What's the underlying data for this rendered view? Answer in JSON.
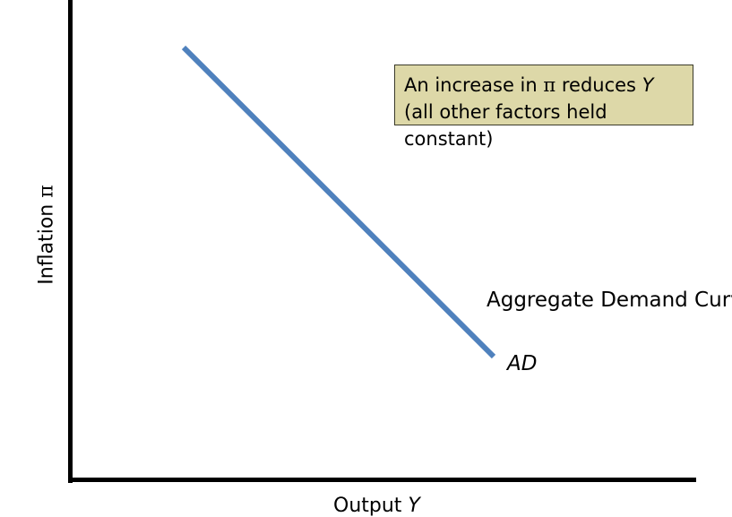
{
  "diagram": {
    "y_axis_label": {
      "text": "Inflation ",
      "symbol": "π"
    },
    "x_axis_label": {
      "text": "Output ",
      "symbol": "Y"
    },
    "curve_name": "Aggregate Demand Curv",
    "curve_label": "AD",
    "annotation": {
      "line1_before": "An increase in ",
      "line1_symbol": "π",
      "line1_middle": " reduces ",
      "line1_var": "Y",
      "line2": "(all other factors held constant)"
    },
    "colors": {
      "curve": "#4f81bd",
      "axes": "#000000",
      "annotation_bg": "#ddd8a8"
    }
  }
}
